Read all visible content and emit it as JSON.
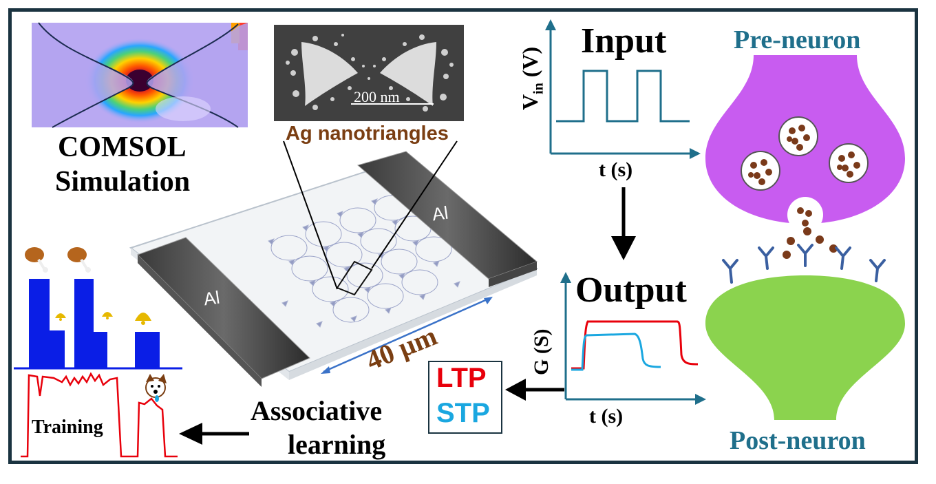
{
  "simulation": {
    "line1": "COMSOL",
    "line2": "Simulation"
  },
  "sem": {
    "scale": "200 nm",
    "caption": "Ag nanotriangles"
  },
  "device": {
    "electrode_left": "Al",
    "electrode_right": "Al",
    "dimension": "40 µm"
  },
  "input_plot": {
    "title": "Input",
    "ylabel_main": "V",
    "ylabel_sub": "in",
    "ylabel_unit": "(V)",
    "xlabel": "t (s)"
  },
  "output_plot": {
    "title": "Output",
    "ylabel": "G (S)",
    "xlabel": "t (s)"
  },
  "plasticity": {
    "ltp": "LTP",
    "stp": "STP",
    "ltp_color": "#e8000b",
    "stp_color": "#1aa7e0"
  },
  "neurons": {
    "pre": "Pre-neuron",
    "post": "Post-neuron",
    "pre_color": "#c85cf0",
    "post_color": "#8bd34e",
    "label_color": "#1f6f8b"
  },
  "learning": {
    "line1": "Associative",
    "line2": "learning",
    "training": "Training"
  },
  "colors": {
    "frame": "#1a3340",
    "axis": "#1f6f8b",
    "bar": "#0a1ee6"
  }
}
